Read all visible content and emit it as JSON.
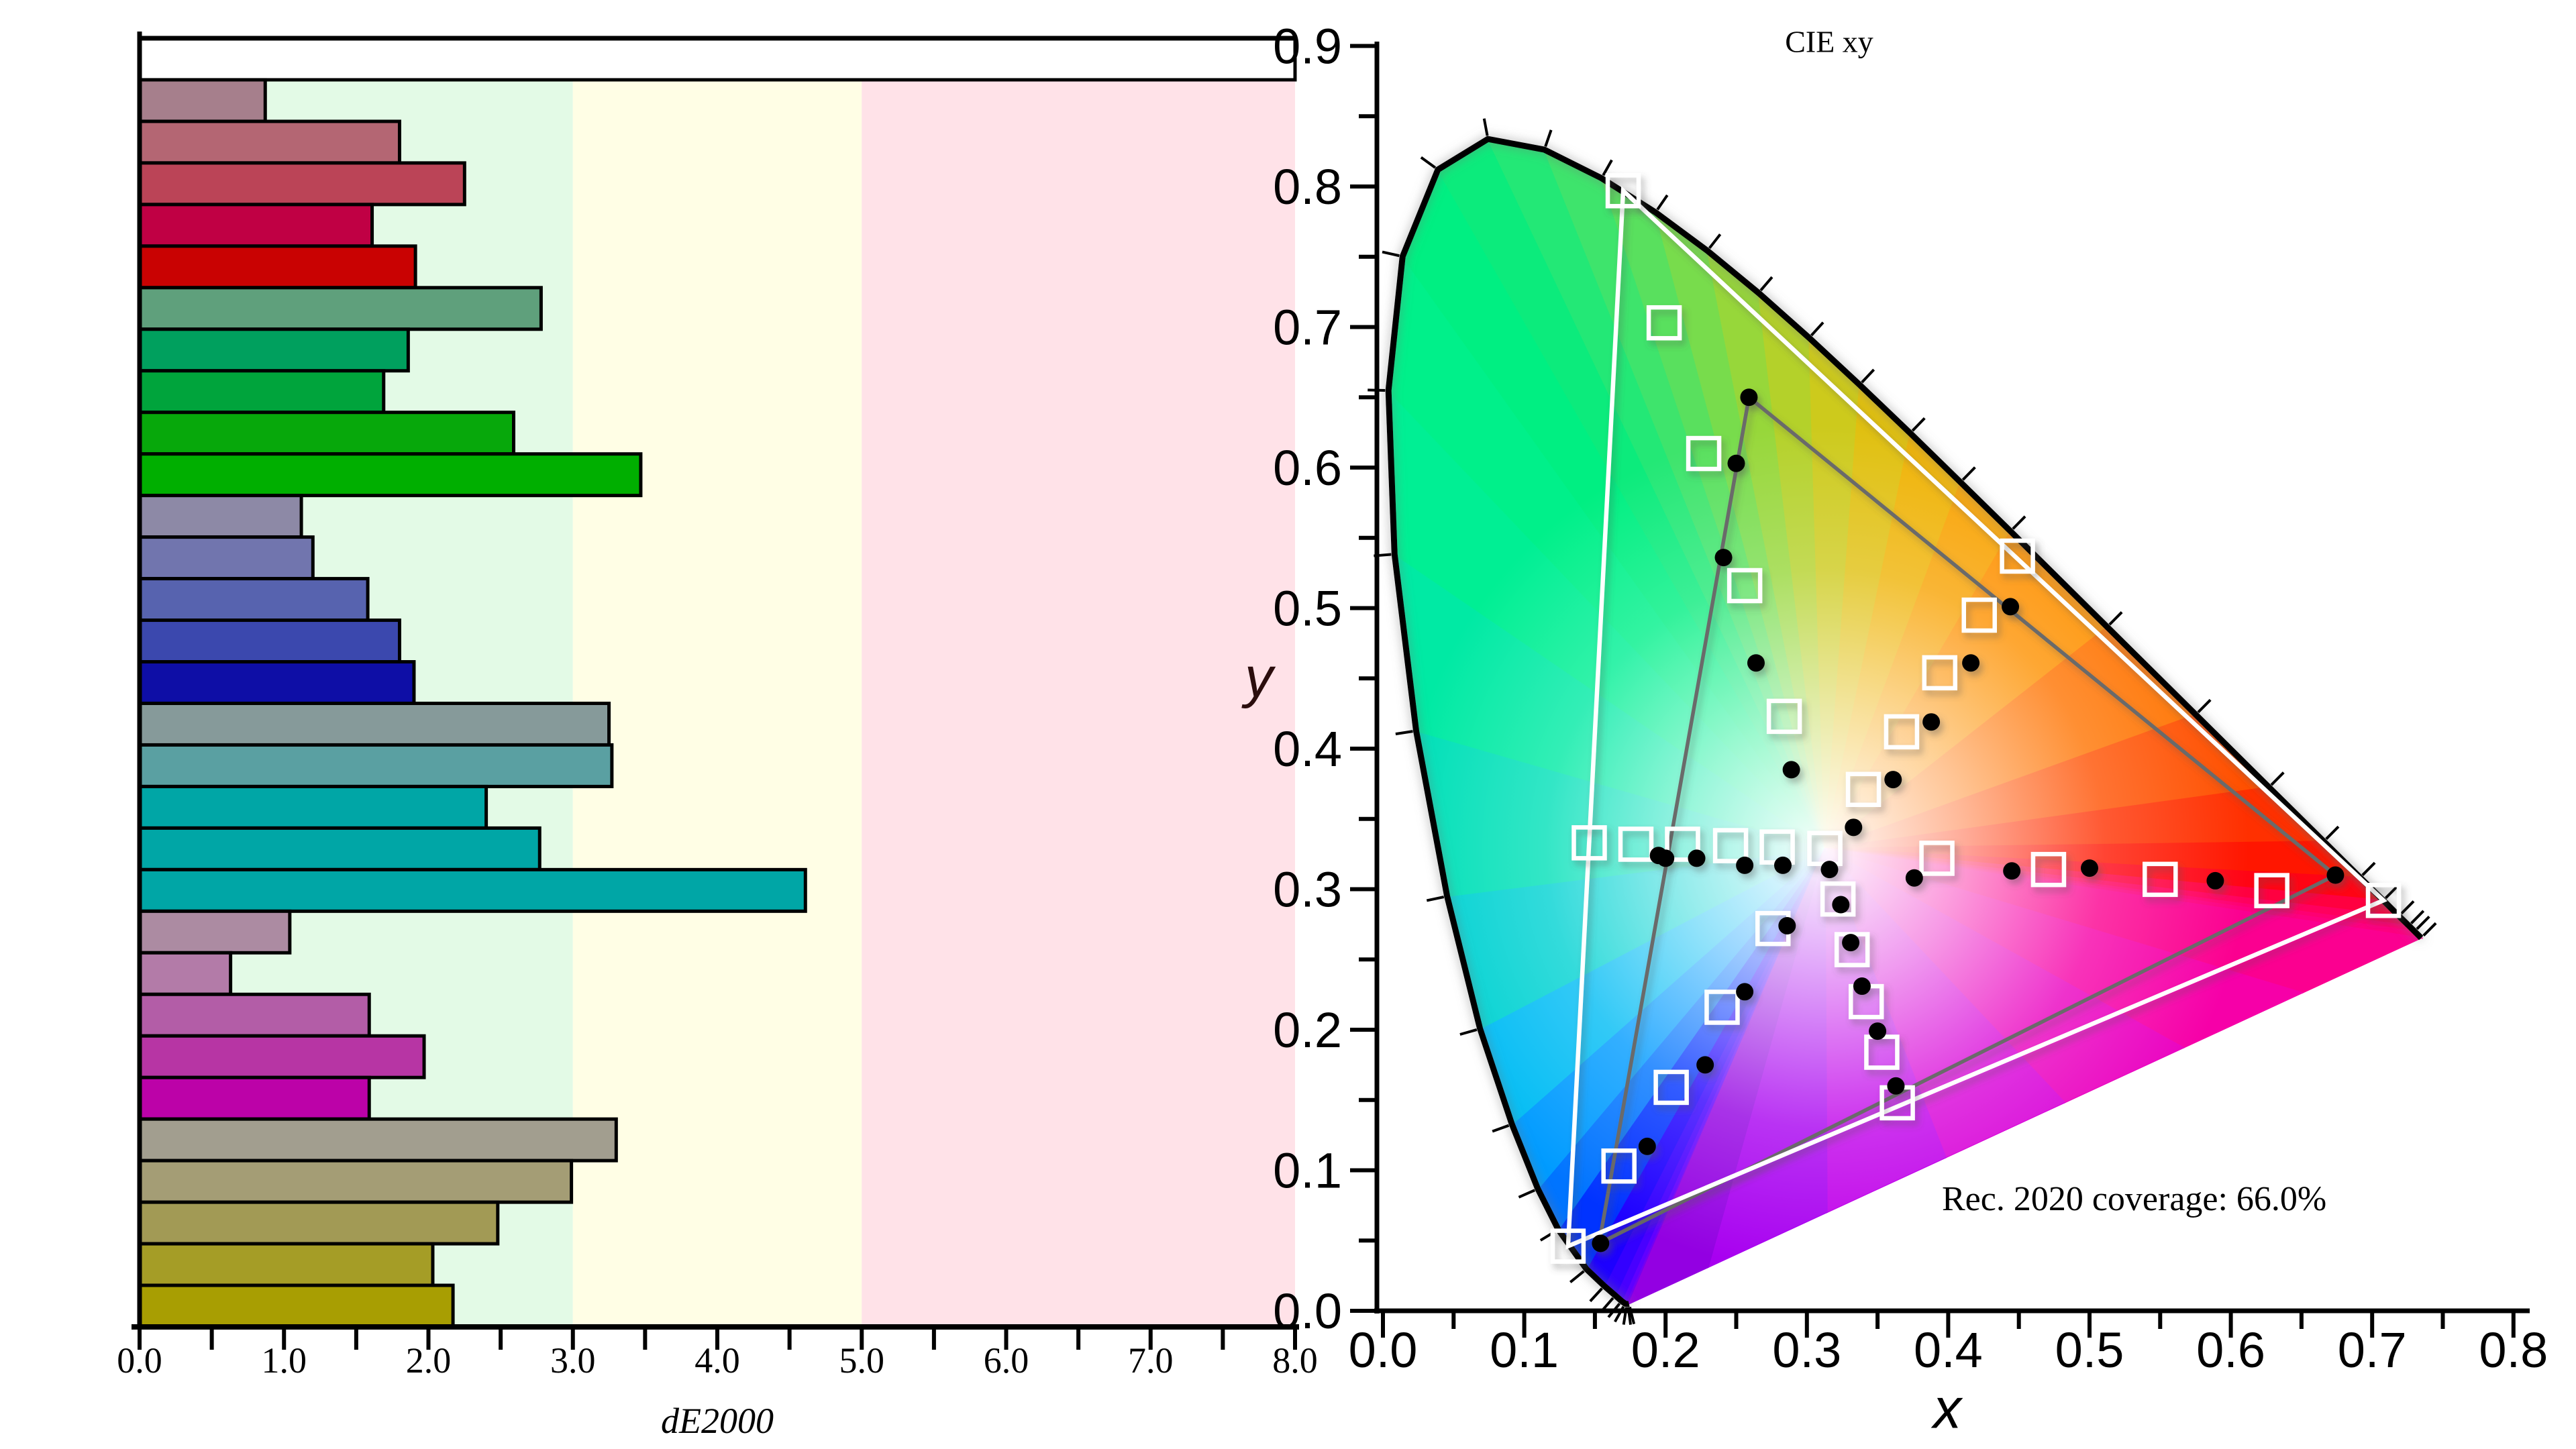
{
  "chart_data": [
    {
      "type": "bar",
      "orientation": "horizontal",
      "xlabel": "dE2000",
      "xlim": [
        0,
        8
      ],
      "x_tick_labels": [
        "0.0",
        "1.0",
        "2.0",
        "3.0",
        "4.0",
        "5.0",
        "6.0",
        "7.0",
        "8.0"
      ],
      "x_minor_tick_step": 0.5,
      "background_zones": [
        {
          "from": 0,
          "to": 3,
          "color": "#e3fae6"
        },
        {
          "from": 3,
          "to": 5,
          "color": "#fffee5"
        },
        {
          "from": 5,
          "to": 8,
          "color": "#ffe2e8"
        }
      ],
      "bars": [
        {
          "value": 8.0,
          "color": "#ffffff"
        },
        {
          "value": 0.87,
          "color": "#a67f8c"
        },
        {
          "value": 1.8,
          "color": "#b46673"
        },
        {
          "value": 2.25,
          "color": "#bb4457"
        },
        {
          "value": 1.61,
          "color": "#c00044"
        },
        {
          "value": 1.91,
          "color": "#c90202"
        },
        {
          "value": 2.78,
          "color": "#5fa07c"
        },
        {
          "value": 1.86,
          "color": "#00a05e"
        },
        {
          "value": 1.69,
          "color": "#00a43c"
        },
        {
          "value": 2.59,
          "color": "#07a80b"
        },
        {
          "value": 3.47,
          "color": "#00af00"
        },
        {
          "value": 1.12,
          "color": "#8d89a6"
        },
        {
          "value": 1.2,
          "color": "#7175ae"
        },
        {
          "value": 1.58,
          "color": "#5763af"
        },
        {
          "value": 1.8,
          "color": "#3b48ae"
        },
        {
          "value": 1.9,
          "color": "#0e0ea6"
        },
        {
          "value": 3.25,
          "color": "#869a9a"
        },
        {
          "value": 3.27,
          "color": "#5aa0a2"
        },
        {
          "value": 2.4,
          "color": "#00a6a6"
        },
        {
          "value": 2.77,
          "color": "#00a6a6"
        },
        {
          "value": 4.61,
          "color": "#00a6a6"
        },
        {
          "value": 1.04,
          "color": "#ac8ba2"
        },
        {
          "value": 0.63,
          "color": "#b37ba8"
        },
        {
          "value": 1.59,
          "color": "#b35da7"
        },
        {
          "value": 1.97,
          "color": "#b735a4"
        },
        {
          "value": 1.59,
          "color": "#bc02a8"
        },
        {
          "value": 3.3,
          "color": "#a29e8f"
        },
        {
          "value": 2.99,
          "color": "#a49d75"
        },
        {
          "value": 2.48,
          "color": "#a29a55"
        },
        {
          "value": 2.03,
          "color": "#a59d26"
        },
        {
          "value": 2.17,
          "color": "#a89e02"
        }
      ]
    },
    {
      "type": "scatter",
      "title": "CIE xy",
      "xlabel": "x",
      "ylabel": "y",
      "xlim": [
        0,
        0.8
      ],
      "ylim": [
        0,
        0.9
      ],
      "x_tick_labels": [
        "0.0",
        "0.1",
        "0.2",
        "0.3",
        "0.4",
        "0.5",
        "0.6",
        "0.7",
        "0.8"
      ],
      "y_tick_labels": [
        "0.0",
        "0.1",
        "0.2",
        "0.3",
        "0.4",
        "0.5",
        "0.6",
        "0.7",
        "0.8",
        "0.9"
      ],
      "annotation": "Rec. 2020 coverage: 66.0%",
      "coverage_percent": 66.0,
      "white_point": [
        0.3127,
        0.329
      ],
      "rec2020_triangle": {
        "red": [
          0.708,
          0.292
        ],
        "green": [
          0.17,
          0.797
        ],
        "blue": [
          0.131,
          0.046
        ]
      },
      "measured_gamut_triangle": {
        "red": [
          0.674,
          0.31
        ],
        "green": [
          0.259,
          0.65
        ],
        "blue": [
          0.153,
          0.048
        ]
      },
      "saturation_targets": {
        "white": [
          [
            0.3127,
            0.329
          ]
        ],
        "red": [
          [
            0.392,
            0.322
          ],
          [
            0.471,
            0.314
          ],
          [
            0.55,
            0.307
          ],
          [
            0.629,
            0.299
          ],
          [
            0.708,
            0.292
          ]
        ],
        "green": [
          [
            0.284,
            0.423
          ],
          [
            0.256,
            0.516
          ],
          [
            0.227,
            0.61
          ],
          [
            0.199,
            0.703
          ],
          [
            0.17,
            0.797
          ]
        ],
        "blue": [
          [
            0.276,
            0.272
          ],
          [
            0.24,
            0.216
          ],
          [
            0.204,
            0.159
          ],
          [
            0.167,
            0.103
          ],
          [
            0.131,
            0.046
          ]
        ],
        "cyan": [
          [
            0.279,
            0.33
          ],
          [
            0.246,
            0.331
          ],
          [
            0.212,
            0.332
          ],
          [
            0.179,
            0.332
          ],
          [
            0.146,
            0.333
          ]
        ],
        "magenta": [
          [
            0.322,
            0.293
          ],
          [
            0.332,
            0.257
          ],
          [
            0.342,
            0.22
          ],
          [
            0.353,
            0.184
          ],
          [
            0.364,
            0.148
          ]
        ],
        "yellow": [
          [
            0.34,
            0.371
          ],
          [
            0.367,
            0.412
          ],
          [
            0.394,
            0.454
          ],
          [
            0.422,
            0.495
          ],
          [
            0.449,
            0.537
          ]
        ]
      },
      "saturation_measured": {
        "white": [
          [
            0.316,
            0.314
          ]
        ],
        "red": [
          [
            0.376,
            0.308
          ],
          [
            0.445,
            0.313
          ],
          [
            0.5,
            0.315
          ],
          [
            0.589,
            0.306
          ],
          [
            0.674,
            0.31
          ]
        ],
        "green": [
          [
            0.289,
            0.385
          ],
          [
            0.264,
            0.461
          ],
          [
            0.241,
            0.536
          ],
          [
            0.25,
            0.603
          ],
          [
            0.259,
            0.65
          ]
        ],
        "blue": [
          [
            0.286,
            0.274
          ],
          [
            0.256,
            0.227
          ],
          [
            0.228,
            0.175
          ],
          [
            0.187,
            0.117
          ],
          [
            0.154,
            0.048
          ]
        ],
        "cyan": [
          [
            0.283,
            0.317
          ],
          [
            0.256,
            0.317
          ],
          [
            0.222,
            0.322
          ],
          [
            0.2,
            0.322
          ],
          [
            0.195,
            0.324
          ]
        ],
        "magenta": [
          [
            0.324,
            0.289
          ],
          [
            0.331,
            0.262
          ],
          [
            0.339,
            0.231
          ],
          [
            0.35,
            0.199
          ],
          [
            0.363,
            0.16
          ]
        ],
        "yellow": [
          [
            0.333,
            0.344
          ],
          [
            0.361,
            0.378
          ],
          [
            0.388,
            0.419
          ],
          [
            0.416,
            0.461
          ],
          [
            0.444,
            0.501
          ]
        ]
      },
      "spectral_locus": [
        [
          0.1741,
          0.005,
          "#7e00cf"
        ],
        [
          0.1733,
          0.0048,
          "#7a00e8"
        ],
        [
          0.1726,
          0.0048,
          "#7100f4"
        ],
        [
          0.1714,
          0.0051,
          "#5f00ff"
        ],
        [
          0.1689,
          0.0069,
          "#4800ff"
        ],
        [
          0.1644,
          0.0109,
          "#3300ff"
        ],
        [
          0.1566,
          0.0177,
          "#1d00ff"
        ],
        [
          0.144,
          0.0297,
          "#0033ff"
        ],
        [
          0.1241,
          0.0578,
          "#0074ff"
        ],
        [
          0.1096,
          0.0868,
          "#009bff"
        ],
        [
          0.0913,
          0.1327,
          "#00bcf4"
        ],
        [
          0.0687,
          0.2007,
          "#00d2d2"
        ],
        [
          0.0454,
          0.295,
          "#00e0b8"
        ],
        [
          0.0235,
          0.4127,
          "#00eaa4"
        ],
        [
          0.0082,
          0.5384,
          "#00ef94"
        ],
        [
          0.0039,
          0.6548,
          "#00f08a"
        ],
        [
          0.0139,
          0.7502,
          "#00ef82"
        ],
        [
          0.0389,
          0.812,
          "#0ceb7c"
        ],
        [
          0.0743,
          0.8338,
          "#23e876"
        ],
        [
          0.1142,
          0.8262,
          "#3ee46c"
        ],
        [
          0.1547,
          0.8059,
          "#59e05e"
        ],
        [
          0.1929,
          0.7816,
          "#78dc4c"
        ],
        [
          0.2296,
          0.7543,
          "#97d73a"
        ],
        [
          0.2658,
          0.7243,
          "#b4d12a"
        ],
        [
          0.3016,
          0.6923,
          "#cdca1c"
        ],
        [
          0.3373,
          0.6589,
          "#e0c010"
        ],
        [
          0.3731,
          0.6245,
          "#efb306"
        ],
        [
          0.4087,
          0.5896,
          "#f8a303"
        ],
        [
          0.4441,
          0.5547,
          "#fe9100"
        ],
        [
          0.5125,
          0.4866,
          "#ff7300"
        ],
        [
          0.5752,
          0.4242,
          "#ff5000"
        ],
        [
          0.627,
          0.3725,
          "#ff3000"
        ],
        [
          0.6658,
          0.334,
          "#ff1600"
        ],
        [
          0.6915,
          0.3083,
          "#ff0414"
        ],
        [
          0.7079,
          0.292,
          "#ff0040"
        ],
        [
          0.719,
          0.2809,
          "#ff005e"
        ],
        [
          0.726,
          0.274,
          "#fe0072"
        ],
        [
          0.73,
          0.27,
          "#fd0080"
        ],
        [
          0.7347,
          0.2653,
          "#fb0090"
        ]
      ],
      "purple_line": [
        [
          0.6506,
          0.2263,
          "#f600a8"
        ],
        [
          0.5665,
          0.1872,
          "#ea00c0"
        ],
        [
          0.4824,
          0.1482,
          "#d800d8"
        ],
        [
          0.3983,
          0.1091,
          "#c000ea"
        ],
        [
          0.3142,
          0.0701,
          "#a800f0"
        ],
        [
          0.2301,
          0.031,
          "#9300e2"
        ]
      ]
    }
  ]
}
